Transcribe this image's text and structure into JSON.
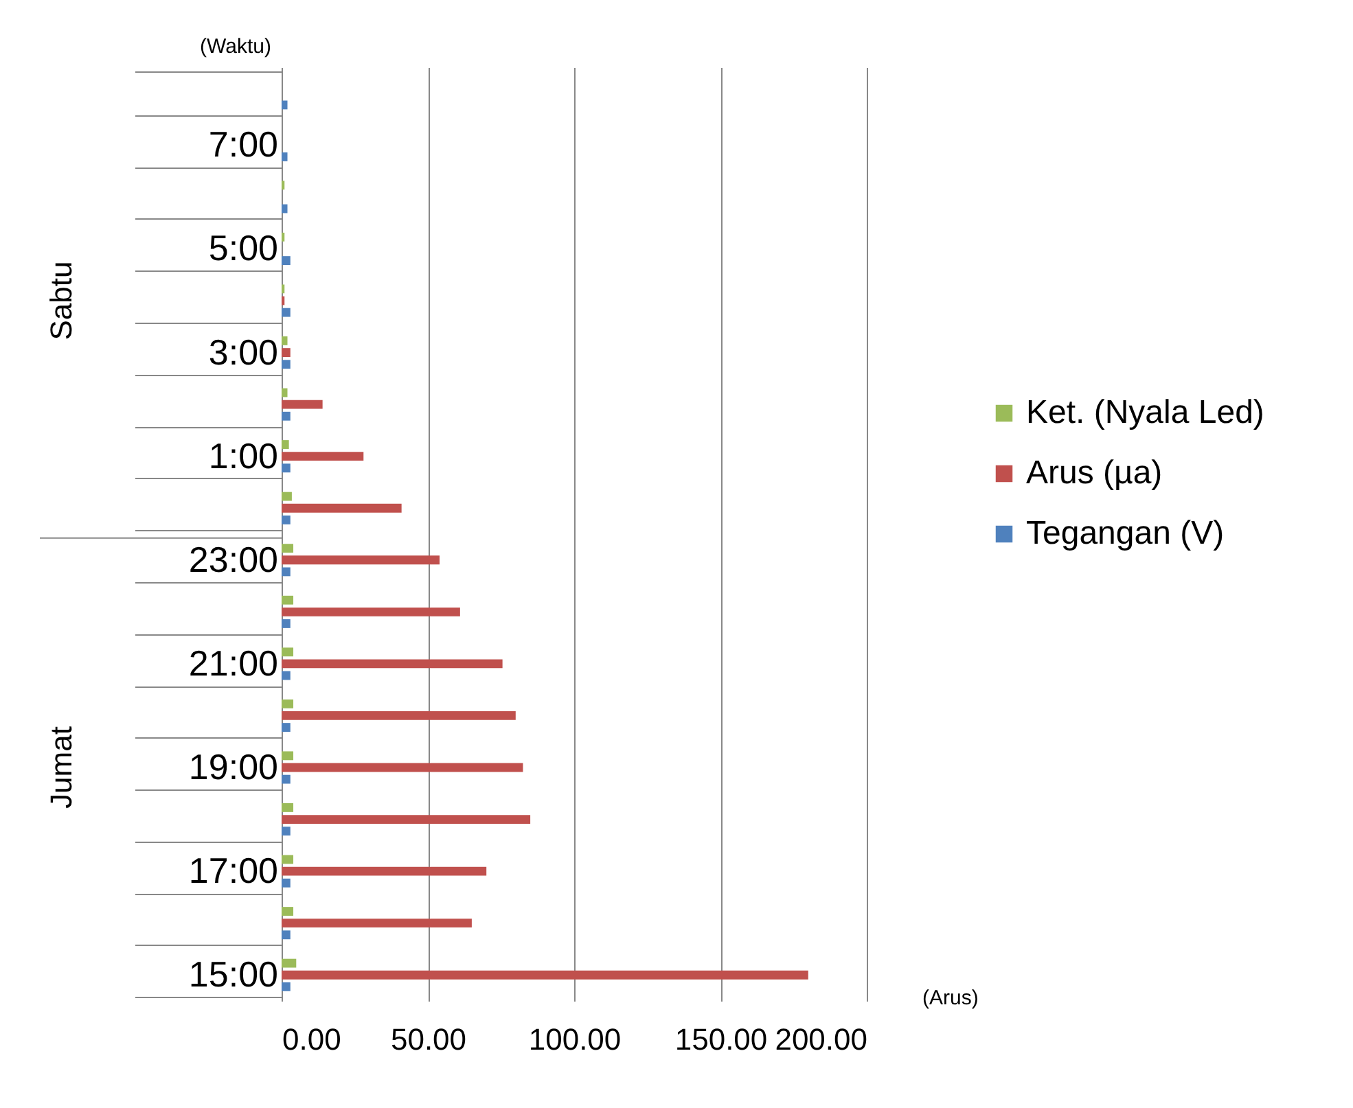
{
  "chart_data": {
    "type": "bar",
    "orientation": "horizontal",
    "ylabel": "(Waktu)",
    "xlabel": "(Arus)",
    "categories": [
      null,
      "7:00",
      null,
      "5:00",
      null,
      "3:00",
      null,
      "1:00",
      null,
      "23:00",
      null,
      "21:00",
      null,
      "19:00",
      null,
      "17:00",
      null,
      "15:00"
    ],
    "series": [
      {
        "name": "Ket. (Nyala Led)",
        "color": "#9bbb59",
        "values": [
          0,
          0,
          1,
          1,
          1,
          2,
          2,
          2.5,
          3.5,
          4,
          4,
          4,
          4,
          4,
          4,
          4,
          4,
          5
        ]
      },
      {
        "name": "Arus (µa)",
        "color": "#c0504d",
        "values": [
          0,
          0,
          0,
          0,
          1,
          3,
          14,
          28,
          41,
          54,
          61,
          75.5,
          80,
          82.5,
          85,
          70,
          65,
          180
        ]
      },
      {
        "name": "Tegangan (V)",
        "color": "#4f81bd",
        "values": [
          2,
          2,
          2,
          3,
          3,
          3,
          3,
          3,
          3,
          3,
          3,
          3,
          3,
          3,
          3,
          3,
          3,
          3
        ]
      }
    ],
    "xlim": [
      0,
      200
    ],
    "xticks": [
      {
        "value": 0,
        "label": "0.00"
      },
      {
        "value": 50,
        "label": "50.00"
      },
      {
        "value": 100,
        "label": "100.00"
      },
      {
        "value": 150,
        "label": "150.00"
      },
      {
        "value": 200,
        "label": "200.00"
      }
    ],
    "grid": "x",
    "legend": "right",
    "annotations": [
      "Sabtu",
      "Jumat"
    ]
  }
}
